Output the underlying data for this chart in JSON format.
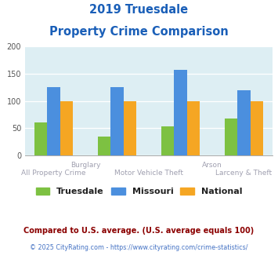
{
  "title_line1": "2019 Truesdale",
  "title_line2": "Property Crime Comparison",
  "truesdale": [
    60,
    35,
    53,
    68
  ],
  "missouri": [
    125,
    126,
    157,
    120
  ],
  "national": [
    100,
    100,
    100,
    100
  ],
  "colors": {
    "truesdale": "#7dc142",
    "missouri": "#4b8fde",
    "national": "#f5a623"
  },
  "ylim": [
    0,
    200
  ],
  "yticks": [
    0,
    50,
    100,
    150,
    200
  ],
  "bg_color": "#ddeef3",
  "title_color": "#1a5fb8",
  "top_labels": [
    [
      "Burglary",
      1
    ],
    [
      "Arson",
      3
    ]
  ],
  "bottom_labels": [
    [
      "All Property Crime",
      0
    ],
    [
      "Motor Vehicle Theft",
      2
    ],
    [
      "Larceny & Theft",
      3
    ]
  ],
  "footnote1": "Compared to U.S. average. (U.S. average equals 100)",
  "footnote2": "© 2025 CityRating.com - https://www.cityrating.com/crime-statistics/",
  "footnote1_color": "#8b0000",
  "footnote2_color": "#4472c4",
  "legend_labels": [
    "Truesdale",
    "Missouri",
    "National"
  ]
}
